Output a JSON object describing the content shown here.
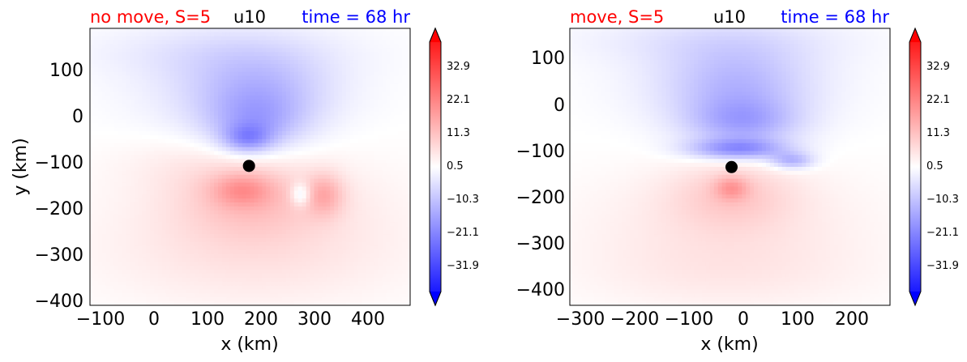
{
  "colors": {
    "title_left": "#ff0000",
    "title_center": "#000000",
    "title_right": "#0000ff",
    "positive": "#ff0000",
    "negative": "#0000ff",
    "center_marker": "#000000"
  },
  "colormap": "blue-white-red diverging (bwr), extended both ends",
  "chart_data": [
    {
      "type": "heatmap",
      "title_left": "no move, S=5",
      "title_center": "u10",
      "title_right": "time = 68 hr",
      "xlabel": "x (km)",
      "ylabel": "y (km)",
      "xlim": [
        -120,
        480
      ],
      "ylim": [
        -410,
        190
      ],
      "xticks": [
        "-100",
        "0",
        "100",
        "200",
        "300",
        "400"
      ],
      "yticks": [
        "100",
        "0",
        "-100",
        "-200",
        "-300",
        "-400"
      ],
      "colorbar_ticks": [
        "32.9",
        "22.1",
        "11.3",
        "0.5",
        "-10.3",
        "-21.1",
        "-31.9"
      ],
      "vmin": -40,
      "vmax": 40,
      "center_marker": {
        "x": 178,
        "y": -108
      },
      "features": [
        {
          "x": 160,
          "y": 60,
          "rx": 190,
          "ry": 120,
          "v": -5
        },
        {
          "x": 200,
          "y": 50,
          "rx": 120,
          "ry": 80,
          "v": -7
        },
        {
          "x": 190,
          "y": -20,
          "rx": 90,
          "ry": 60,
          "v": -9
        },
        {
          "x": 175,
          "y": -50,
          "rx": 45,
          "ry": 30,
          "v": -12
        },
        {
          "x": 120,
          "y": 140,
          "rx": 250,
          "ry": 60,
          "v": -3
        },
        {
          "x": 200,
          "y": -210,
          "rx": 260,
          "ry": 140,
          "v": 4
        },
        {
          "x": 180,
          "y": -180,
          "rx": 130,
          "ry": 80,
          "v": 6
        },
        {
          "x": 165,
          "y": -160,
          "rx": 55,
          "ry": 35,
          "v": 9
        },
        {
          "x": 320,
          "y": -170,
          "rx": 35,
          "ry": 45,
          "v": 9
        },
        {
          "x": 275,
          "y": -170,
          "rx": 18,
          "ry": 25,
          "v": -10
        },
        {
          "x": 180,
          "y": -320,
          "rx": 300,
          "ry": 110,
          "v": 2.5
        },
        {
          "x": 80,
          "y": -100,
          "rx": 150,
          "ry": 60,
          "v": 2
        }
      ]
    },
    {
      "type": "heatmap",
      "title_left": "move, S=5",
      "title_center": "u10",
      "title_right": "time = 68 hr",
      "xlabel": "x (km)",
      "ylabel": "",
      "xlim": [
        -320,
        270
      ],
      "ylim": [
        -430,
        165
      ],
      "xticks": [
        "-300",
        "-200",
        "-100",
        "0",
        "100",
        "200"
      ],
      "yticks": [
        "100",
        "0",
        "-100",
        "-200",
        "-300",
        "-400"
      ],
      "colorbar_ticks": [
        "32.9",
        "22.1",
        "11.3",
        "0.5",
        "-10.3",
        "-21.1",
        "-31.9"
      ],
      "vmin": -40,
      "vmax": 40,
      "center_marker": {
        "x": -22,
        "y": -133
      },
      "features": [
        {
          "x": -20,
          "y": 60,
          "rx": 190,
          "ry": 110,
          "v": -5
        },
        {
          "x": -10,
          "y": 30,
          "rx": 120,
          "ry": 90,
          "v": -7
        },
        {
          "x": 0,
          "y": -40,
          "rx": 100,
          "ry": 50,
          "v": -10
        },
        {
          "x": -10,
          "y": -95,
          "rx": 90,
          "ry": 22,
          "v": -16
        },
        {
          "x": 90,
          "y": -120,
          "rx": 40,
          "ry": 18,
          "v": -12
        },
        {
          "x": -60,
          "y": 140,
          "rx": 260,
          "ry": 50,
          "v": -3
        },
        {
          "x": -30,
          "y": -260,
          "rx": 260,
          "ry": 130,
          "v": 4
        },
        {
          "x": -20,
          "y": -190,
          "rx": 110,
          "ry": 70,
          "v": 6
        },
        {
          "x": -22,
          "y": -178,
          "rx": 30,
          "ry": 25,
          "v": 9
        },
        {
          "x": -30,
          "y": -370,
          "rx": 280,
          "ry": 80,
          "v": 2
        }
      ]
    }
  ]
}
